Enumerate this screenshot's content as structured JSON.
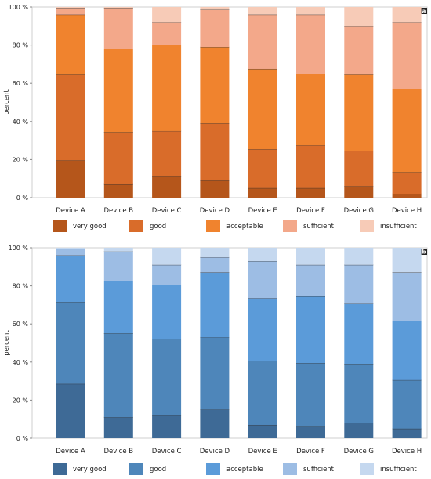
{
  "chart_data": [
    {
      "type": "bar",
      "stacked": true,
      "panel_label": "a",
      "ylabel": "percent",
      "ylim": [
        0,
        100
      ],
      "yticks": [
        "0 %",
        "20 %",
        "40 %",
        "60 %",
        "80 %",
        "100 %"
      ],
      "grid": false,
      "legend_position": "bottom",
      "categories": [
        "Device A",
        "Device B",
        "Device C",
        "Device D",
        "Device E",
        "Device F",
        "Device G",
        "Device H"
      ],
      "series": [
        {
          "name": "very good",
          "color": "#B5561B",
          "values": [
            19.5,
            7,
            11,
            9,
            5,
            5,
            6,
            2
          ]
        },
        {
          "name": "good",
          "color": "#D96C2A",
          "values": [
            45,
            27,
            24,
            30,
            20.5,
            22.5,
            18.5,
            11
          ]
        },
        {
          "name": "acceptable",
          "color": "#F0832E",
          "values": [
            31.5,
            44,
            45,
            40,
            42,
            37.5,
            40,
            44
          ]
        },
        {
          "name": "sufficient",
          "color": "#F3A88A",
          "values": [
            3.5,
            21.5,
            12,
            19.5,
            28.5,
            31,
            25.5,
            35
          ]
        },
        {
          "name": "insufficient",
          "color": "#F7CBB7",
          "values": [
            0.5,
            0.5,
            8,
            1.5,
            4,
            4,
            10,
            8
          ]
        }
      ]
    },
    {
      "type": "bar",
      "stacked": true,
      "panel_label": "b",
      "ylabel": "percent",
      "ylim": [
        0,
        100
      ],
      "yticks": [
        "0 %",
        "20 %",
        "40 %",
        "60 %",
        "80 %",
        "100 %"
      ],
      "grid": false,
      "legend_position": "bottom",
      "categories": [
        "Device A",
        "Device B",
        "Device C",
        "Device D",
        "Device E",
        "Device F",
        "Device G",
        "Device H"
      ],
      "series": [
        {
          "name": "very good",
          "color": "#3E6A96",
          "values": [
            28.5,
            11,
            12,
            15,
            7,
            6,
            8,
            5
          ]
        },
        {
          "name": "good",
          "color": "#4E86BA",
          "values": [
            43,
            44,
            40,
            38,
            33.5,
            33.5,
            31,
            25.5
          ]
        },
        {
          "name": "acceptable",
          "color": "#5B9BD9",
          "values": [
            24.5,
            27.5,
            28.5,
            34,
            33,
            35,
            31.5,
            31
          ]
        },
        {
          "name": "sufficient",
          "color": "#9DBDE4",
          "values": [
            3.5,
            15.5,
            10.5,
            8,
            19.5,
            16.5,
            20.5,
            25.5
          ]
        },
        {
          "name": "insufficient",
          "color": "#C5D8EF",
          "values": [
            0.5,
            2,
            9,
            5,
            7,
            9,
            9,
            13
          ]
        }
      ]
    }
  ]
}
